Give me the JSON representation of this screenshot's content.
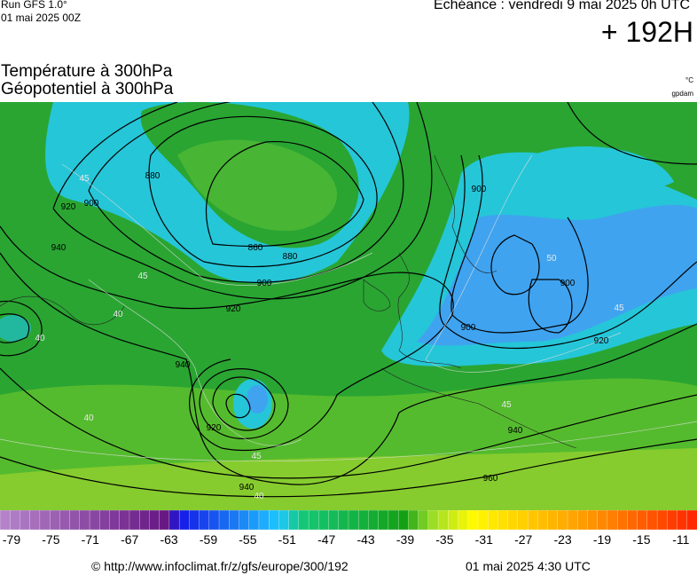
{
  "header": {
    "run": "Run GFS 1.0°",
    "run_date": "01 mai 2025 00Z",
    "valid": "Echéance : vendredi 9 mai 2025 0h UTC",
    "lead": "+ 192H",
    "title_1": "Température à 300hPa",
    "title_2": "Géopotentiel à 300hPa",
    "unit_1": "°C",
    "unit_2": "gpdam"
  },
  "geopotential_labels": [
    "860",
    "880",
    "900",
    "920",
    "940",
    "920",
    "940",
    "960",
    "940",
    "900",
    "900",
    "900",
    "920",
    "900",
    "880",
    "940",
    "920"
  ],
  "temperature_labels": [
    "45",
    "40",
    "45",
    "40",
    "45",
    "40",
    "45",
    "40",
    "50",
    "45"
  ],
  "colorbar": {
    "labels": [
      -79,
      -75,
      -71,
      -67,
      -63,
      -59,
      -55,
      -51,
      -47,
      -43,
      -39,
      -35,
      -31,
      -27,
      -23,
      -19,
      -15,
      -11
    ]
  },
  "footer": {
    "source": "© http://www.infoclimat.fr/z/gfs/europe/300/192",
    "generated": "01 mai 2025  4:30 UTC"
  }
}
